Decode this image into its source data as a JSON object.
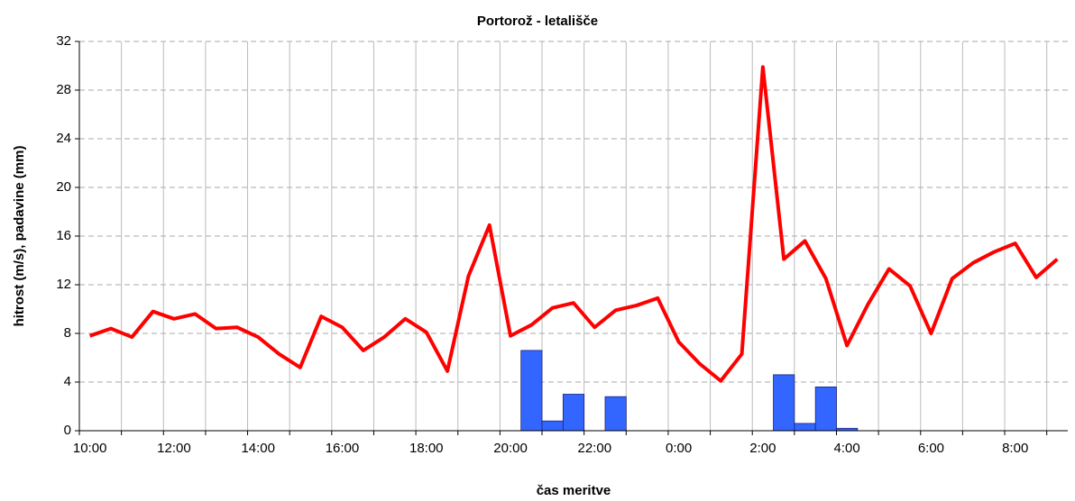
{
  "chart_data": {
    "type": "combo",
    "title": "Portorož - letališče",
    "xlabel": "čas meritve",
    "ylabel": "hitrost (m/s), padavine (mm)",
    "categories": [
      "10:00",
      null,
      null,
      null,
      "12:00",
      null,
      null,
      null,
      "14:00",
      null,
      null,
      null,
      "16:00",
      null,
      null,
      null,
      "18:00",
      null,
      null,
      null,
      "20:00",
      null,
      null,
      null,
      "22:00",
      null,
      null,
      null,
      "0:00",
      null,
      null,
      null,
      "2:00",
      null,
      null,
      null,
      "4:00",
      null,
      null,
      null,
      "6:00",
      null,
      null,
      null,
      "8:00",
      null,
      null
    ],
    "series": [
      {
        "type": "bar",
        "color": "#3366ff",
        "values": [
          0,
          0,
          0,
          0,
          0,
          0,
          0,
          0,
          0,
          0,
          0,
          0,
          0,
          0,
          0,
          0,
          0,
          0,
          0,
          0,
          0,
          6.6,
          0.8,
          3.0,
          0,
          2.8,
          0,
          0,
          0,
          0,
          0,
          0,
          0,
          4.6,
          0.6,
          3.6,
          0.2,
          0,
          0,
          0,
          0,
          0,
          0,
          0,
          0,
          0,
          0
        ]
      },
      {
        "type": "line",
        "color": "#ff0000",
        "values": [
          7.8,
          8.4,
          7.7,
          9.8,
          9.2,
          9.6,
          8.4,
          8.5,
          7.7,
          6.3,
          5.2,
          9.4,
          8.5,
          6.6,
          7.7,
          9.2,
          8.1,
          4.9,
          12.7,
          16.9,
          7.8,
          8.7,
          10.1,
          10.5,
          8.5,
          9.9,
          10.3,
          10.9,
          7.3,
          5.5,
          4.1,
          6.3,
          29.9,
          14.1,
          15.6,
          12.5,
          7.0,
          10.4,
          13.3,
          11.9,
          8.0,
          12.5,
          13.8,
          14.7,
          15.4,
          12.6,
          14.1
        ]
      }
    ],
    "ylim": [
      0,
      32
    ],
    "yticks": [
      0,
      4,
      8,
      12,
      16,
      20,
      24,
      28,
      32
    ],
    "grid": true
  }
}
